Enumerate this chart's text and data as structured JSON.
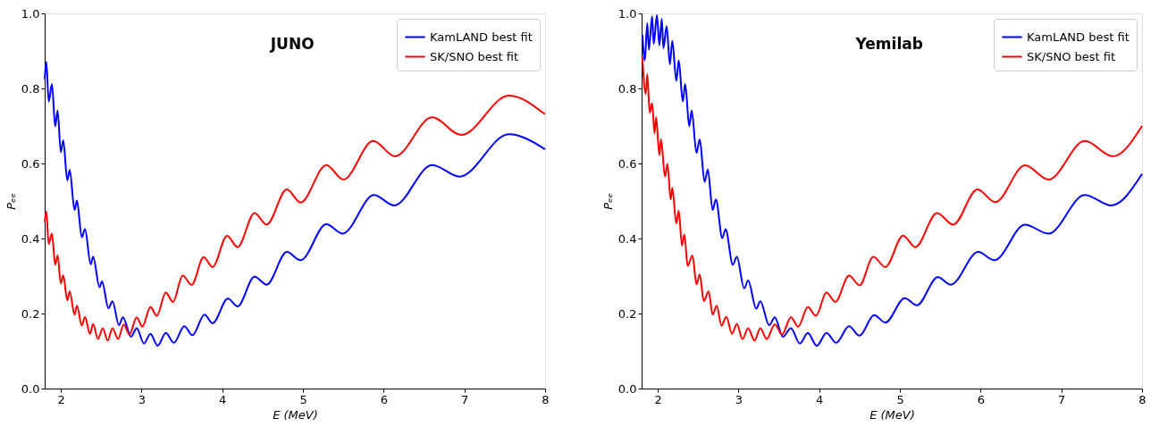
{
  "chart_data": [
    {
      "type": "line",
      "title": "JUNO",
      "xlabel": "E (MeV)",
      "ylabel": "Pₑₑ",
      "xlim": [
        1.8,
        8
      ],
      "ylim": [
        0,
        1
      ],
      "xticks": [
        2,
        3,
        4,
        5,
        6,
        7,
        8
      ],
      "yticks": [
        {
          "value": 0,
          "label": "0.0"
        },
        {
          "value": 0.2,
          "label": "0.2"
        },
        {
          "value": 0.4,
          "label": "0.4"
        },
        {
          "value": 0.6,
          "label": "0.6"
        },
        {
          "value": 0.8,
          "label": "0.8"
        },
        {
          "value": 1,
          "label": "1.0"
        }
      ],
      "grid": false,
      "legend": "top right",
      "line_style": "solid",
      "marker": "none",
      "series": [
        {
          "name": "KamLAND best fit",
          "color": "#0000ff",
          "x": [
            1.8,
            1.82,
            1.85,
            1.89,
            1.93,
            1.96,
            2.0,
            2.03,
            2.08,
            2.11,
            2.17,
            2.2,
            2.26,
            2.3,
            2.37,
            2.4,
            2.48,
            2.51,
            2.59,
            2.64,
            2.72,
            2.77,
            2.87,
            2.94,
            3.03,
            3.11,
            3.2,
            3.3,
            3.4,
            3.53,
            3.63,
            3.78,
            3.88,
            4.07,
            4.19,
            4.4,
            4.55,
            4.8,
            4.97,
            5.29,
            5.49,
            5.88,
            6.13,
            6.6,
            6.94,
            7.55,
            8.0
          ],
          "values": [
            0.824,
            0.871,
            0.765,
            0.812,
            0.699,
            0.741,
            0.63,
            0.662,
            0.555,
            0.583,
            0.476,
            0.501,
            0.403,
            0.425,
            0.331,
            0.351,
            0.27,
            0.286,
            0.214,
            0.233,
            0.169,
            0.19,
            0.138,
            0.161,
            0.12,
            0.146,
            0.114,
            0.148,
            0.122,
            0.166,
            0.142,
            0.197,
            0.174,
            0.24,
            0.219,
            0.298,
            0.277,
            0.364,
            0.342,
            0.438,
            0.413,
            0.516,
            0.488,
            0.596,
            0.565,
            0.678,
            0.638
          ]
        },
        {
          "name": "SK/SNO best fit",
          "color": "#ff0000",
          "x": [
            1.8,
            1.82,
            1.85,
            1.89,
            1.93,
            1.96,
            2.0,
            2.03,
            2.08,
            2.11,
            2.17,
            2.2,
            2.26,
            2.3,
            2.36,
            2.4,
            2.46,
            2.52,
            2.58,
            2.64,
            2.71,
            2.78,
            2.85,
            2.94,
            3.01,
            3.11,
            3.19,
            3.3,
            3.39,
            3.51,
            3.62,
            3.77,
            3.88,
            4.06,
            4.19,
            4.4,
            4.55,
            4.8,
            4.97,
            5.29,
            5.5,
            5.87,
            6.14,
            6.6,
            6.96,
            7.55,
            8.0
          ],
          "values": [
            0.444,
            0.472,
            0.385,
            0.413,
            0.33,
            0.355,
            0.28,
            0.302,
            0.235,
            0.259,
            0.197,
            0.221,
            0.168,
            0.191,
            0.146,
            0.172,
            0.132,
            0.161,
            0.128,
            0.161,
            0.132,
            0.171,
            0.144,
            0.19,
            0.165,
            0.217,
            0.194,
            0.256,
            0.231,
            0.301,
            0.276,
            0.35,
            0.324,
            0.407,
            0.377,
            0.468,
            0.437,
            0.531,
            0.496,
            0.596,
            0.557,
            0.66,
            0.619,
            0.723,
            0.676,
            0.781,
            0.731
          ]
        }
      ]
    },
    {
      "type": "line",
      "title": "Yemilab",
      "xlabel": "E (MeV)",
      "ylabel": "Pₑₑ",
      "xlim": [
        1.8,
        8
      ],
      "ylim": [
        0,
        1
      ],
      "xticks": [
        2,
        3,
        4,
        5,
        6,
        7,
        8
      ],
      "yticks": [
        {
          "value": 0,
          "label": "0.0"
        },
        {
          "value": 0.2,
          "label": "0.2"
        },
        {
          "value": 0.4,
          "label": "0.4"
        },
        {
          "value": 0.6,
          "label": "0.6"
        },
        {
          "value": 0.8,
          "label": "0.8"
        },
        {
          "value": 1,
          "label": "1.0"
        }
      ],
      "grid": false,
      "legend": "top right",
      "line_style": "solid",
      "marker": "none",
      "series": [
        {
          "name": "KamLAND best fit",
          "color": "#0000ff",
          "x": [
            1.81,
            1.84,
            1.87,
            1.89,
            1.93,
            1.95,
            1.99,
            2.02,
            2.05,
            2.07,
            2.11,
            2.15,
            2.18,
            2.23,
            2.26,
            2.31,
            2.34,
            2.39,
            2.42,
            2.48,
            2.52,
            2.58,
            2.62,
            2.68,
            2.72,
            2.8,
            2.84,
            2.93,
            2.98,
            3.07,
            3.12,
            3.22,
            3.27,
            3.38,
            3.45,
            3.55,
            3.65,
            3.76,
            3.86,
            3.97,
            4.09,
            4.21,
            4.37,
            4.5,
            4.68,
            4.82,
            5.06,
            5.21,
            5.47,
            5.63,
            5.97,
            6.17,
            6.55,
            6.84,
            7.29,
            7.62,
            8.0
          ],
          "values": [
            0.943,
            0.875,
            0.974,
            0.903,
            0.992,
            0.919,
            0.995,
            0.915,
            0.986,
            0.907,
            0.966,
            0.864,
            0.927,
            0.82,
            0.875,
            0.765,
            0.812,
            0.699,
            0.741,
            0.628,
            0.664,
            0.551,
            0.584,
            0.476,
            0.504,
            0.401,
            0.425,
            0.33,
            0.351,
            0.267,
            0.288,
            0.213,
            0.233,
            0.169,
            0.19,
            0.138,
            0.161,
            0.12,
            0.148,
            0.114,
            0.148,
            0.122,
            0.166,
            0.141,
            0.196,
            0.176,
            0.241,
            0.222,
            0.297,
            0.277,
            0.364,
            0.342,
            0.437,
            0.413,
            0.516,
            0.488,
            0.572
          ]
        },
        {
          "name": "SK/SNO best fit",
          "color": "#ff0000",
          "x": [
            1.81,
            1.85,
            1.87,
            1.9,
            1.93,
            1.96,
            1.98,
            2.02,
            2.04,
            2.09,
            2.12,
            2.16,
            2.18,
            2.23,
            2.26,
            2.3,
            2.33,
            2.37,
            2.43,
            2.48,
            2.52,
            2.57,
            2.63,
            2.68,
            2.73,
            2.79,
            2.85,
            2.92,
            2.98,
            3.05,
            3.12,
            3.2,
            3.27,
            3.35,
            3.45,
            3.54,
            3.65,
            3.74,
            3.86,
            3.96,
            4.09,
            4.2,
            4.37,
            4.5,
            4.67,
            4.82,
            5.04,
            5.19,
            5.46,
            5.66,
            5.96,
            6.18,
            6.55,
            6.84,
            7.29,
            7.64,
            8.0
          ],
          "values": [
            0.883,
            0.785,
            0.838,
            0.735,
            0.761,
            0.68,
            0.723,
            0.622,
            0.664,
            0.565,
            0.599,
            0.504,
            0.535,
            0.44,
            0.474,
            0.381,
            0.411,
            0.327,
            0.355,
            0.278,
            0.304,
            0.233,
            0.259,
            0.197,
            0.221,
            0.168,
            0.191,
            0.146,
            0.172,
            0.132,
            0.161,
            0.128,
            0.161,
            0.132,
            0.171,
            0.144,
            0.19,
            0.165,
            0.217,
            0.194,
            0.256,
            0.231,
            0.301,
            0.275,
            0.351,
            0.324,
            0.408,
            0.377,
            0.468,
            0.437,
            0.531,
            0.497,
            0.595,
            0.557,
            0.66,
            0.619,
            0.7
          ]
        }
      ]
    }
  ]
}
